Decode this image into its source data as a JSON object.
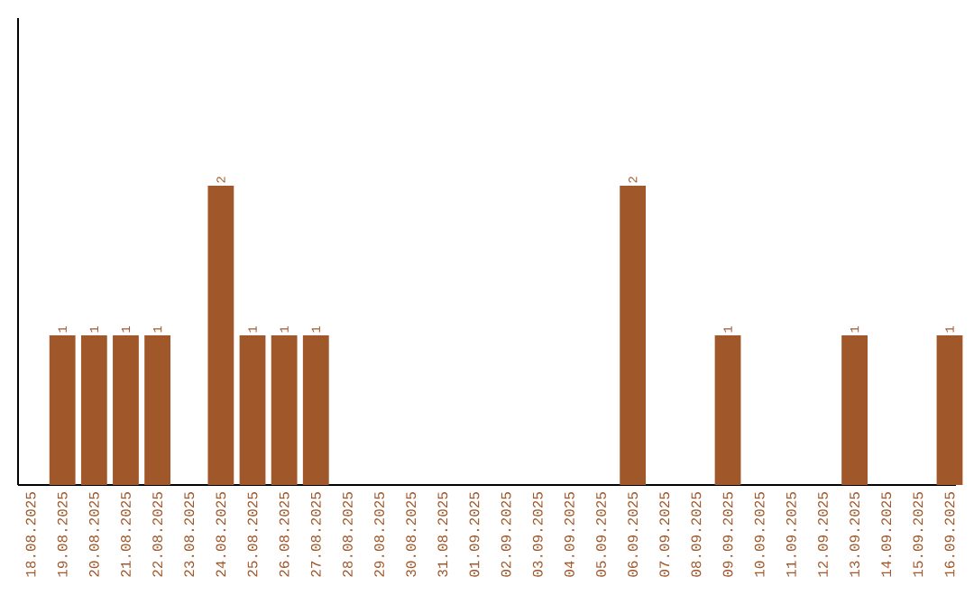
{
  "chart_data": {
    "type": "bar",
    "color": "#a0572a",
    "categories": [
      "18.08.2025",
      "19.08.2025",
      "20.08.2025",
      "21.08.2025",
      "22.08.2025",
      "23.08.2025",
      "24.08.2025",
      "25.08.2025",
      "26.08.2025",
      "27.08.2025",
      "28.08.2025",
      "29.08.2025",
      "30.08.2025",
      "31.08.2025",
      "01.09.2025",
      "02.09.2025",
      "03.09.2025",
      "04.09.2025",
      "05.09.2025",
      "06.09.2025",
      "07.09.2025",
      "08.09.2025",
      "09.09.2025",
      "10.09.2025",
      "11.09.2025",
      "12.09.2025",
      "13.09.2025",
      "14.09.2025",
      "15.09.2025",
      "16.09.2025"
    ],
    "values": [
      0,
      1,
      1,
      1,
      1,
      0,
      2,
      1,
      1,
      1,
      0,
      0,
      0,
      0,
      0,
      0,
      0,
      0,
      0,
      2,
      0,
      0,
      1,
      0,
      0,
      0,
      1,
      0,
      0,
      1
    ],
    "value_labels": [
      null,
      "1",
      "1",
      "1",
      "1",
      null,
      "2",
      "1",
      "1",
      "1",
      null,
      null,
      null,
      null,
      null,
      null,
      null,
      null,
      null,
      "2",
      null,
      null,
      "1",
      null,
      null,
      null,
      "1",
      null,
      null,
      "1"
    ],
    "tick_labels": "x"
  }
}
